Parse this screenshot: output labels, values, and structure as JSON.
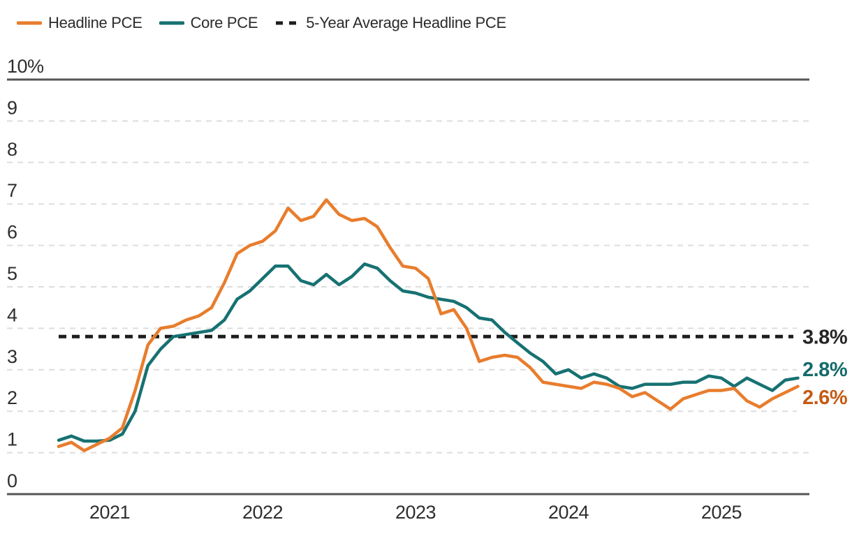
{
  "legend": {
    "items": [
      {
        "label": "Headline PCE",
        "color": "#E87D2D",
        "style": "solid"
      },
      {
        "label": "Core PCE",
        "color": "#177172",
        "style": "solid"
      },
      {
        "label": "5-Year Average Headline PCE",
        "color": "#1E1E1E",
        "style": "dashed"
      }
    ]
  },
  "chart_data": {
    "type": "line",
    "title": "",
    "x_start": "2020-09",
    "x_end": "2025-07",
    "x_frequency": "monthly",
    "x_tick_labels": [
      "2021",
      "2022",
      "2023",
      "2024",
      "2025"
    ],
    "y_tick_labels": [
      "0",
      "1",
      "2",
      "3",
      "4",
      "5",
      "6",
      "7",
      "8",
      "9",
      "10%"
    ],
    "ylim": [
      0,
      10
    ],
    "grid": "horizontal-dashed",
    "legend_position": "top-left",
    "series": [
      {
        "name": "Headline PCE",
        "color": "#E87D2D",
        "end_label": "2.6%",
        "end_label_color": "#C45B15",
        "values": [
          1.15,
          1.25,
          1.05,
          1.2,
          1.35,
          1.6,
          2.5,
          3.6,
          4.0,
          4.05,
          4.2,
          4.3,
          4.5,
          5.1,
          5.8,
          6.0,
          6.1,
          6.35,
          6.9,
          6.6,
          6.7,
          7.1,
          6.75,
          6.6,
          6.65,
          6.45,
          5.95,
          5.5,
          5.45,
          5.2,
          4.35,
          4.45,
          4.0,
          3.2,
          3.3,
          3.35,
          3.3,
          3.05,
          2.7,
          2.65,
          2.6,
          2.55,
          2.7,
          2.65,
          2.55,
          2.35,
          2.45,
          2.25,
          2.05,
          2.3,
          2.4,
          2.5,
          2.5,
          2.55,
          2.25,
          2.1,
          2.3,
          2.45,
          2.6
        ]
      },
      {
        "name": "Core PCE",
        "color": "#177172",
        "end_label": "2.8%",
        "end_label_color": "#156A6B",
        "values": [
          1.3,
          1.4,
          1.28,
          1.28,
          1.3,
          1.45,
          2.0,
          3.1,
          3.5,
          3.8,
          3.85,
          3.9,
          3.95,
          4.2,
          4.7,
          4.9,
          5.2,
          5.5,
          5.5,
          5.15,
          5.05,
          5.3,
          5.05,
          5.25,
          5.55,
          5.45,
          5.15,
          4.9,
          4.85,
          4.75,
          4.7,
          4.65,
          4.5,
          4.25,
          4.2,
          3.9,
          3.65,
          3.4,
          3.2,
          2.9,
          3.0,
          2.8,
          2.9,
          2.8,
          2.6,
          2.55,
          2.65,
          2.65,
          2.65,
          2.7,
          2.7,
          2.85,
          2.8,
          2.6,
          2.8,
          2.65,
          2.5,
          2.75,
          2.8
        ]
      },
      {
        "name": "5-Year Average Headline PCE",
        "color": "#1E1E1E",
        "style": "dashed",
        "constant_value": 3.8,
        "end_label": "3.8%",
        "end_label_color": "#262626"
      }
    ]
  }
}
